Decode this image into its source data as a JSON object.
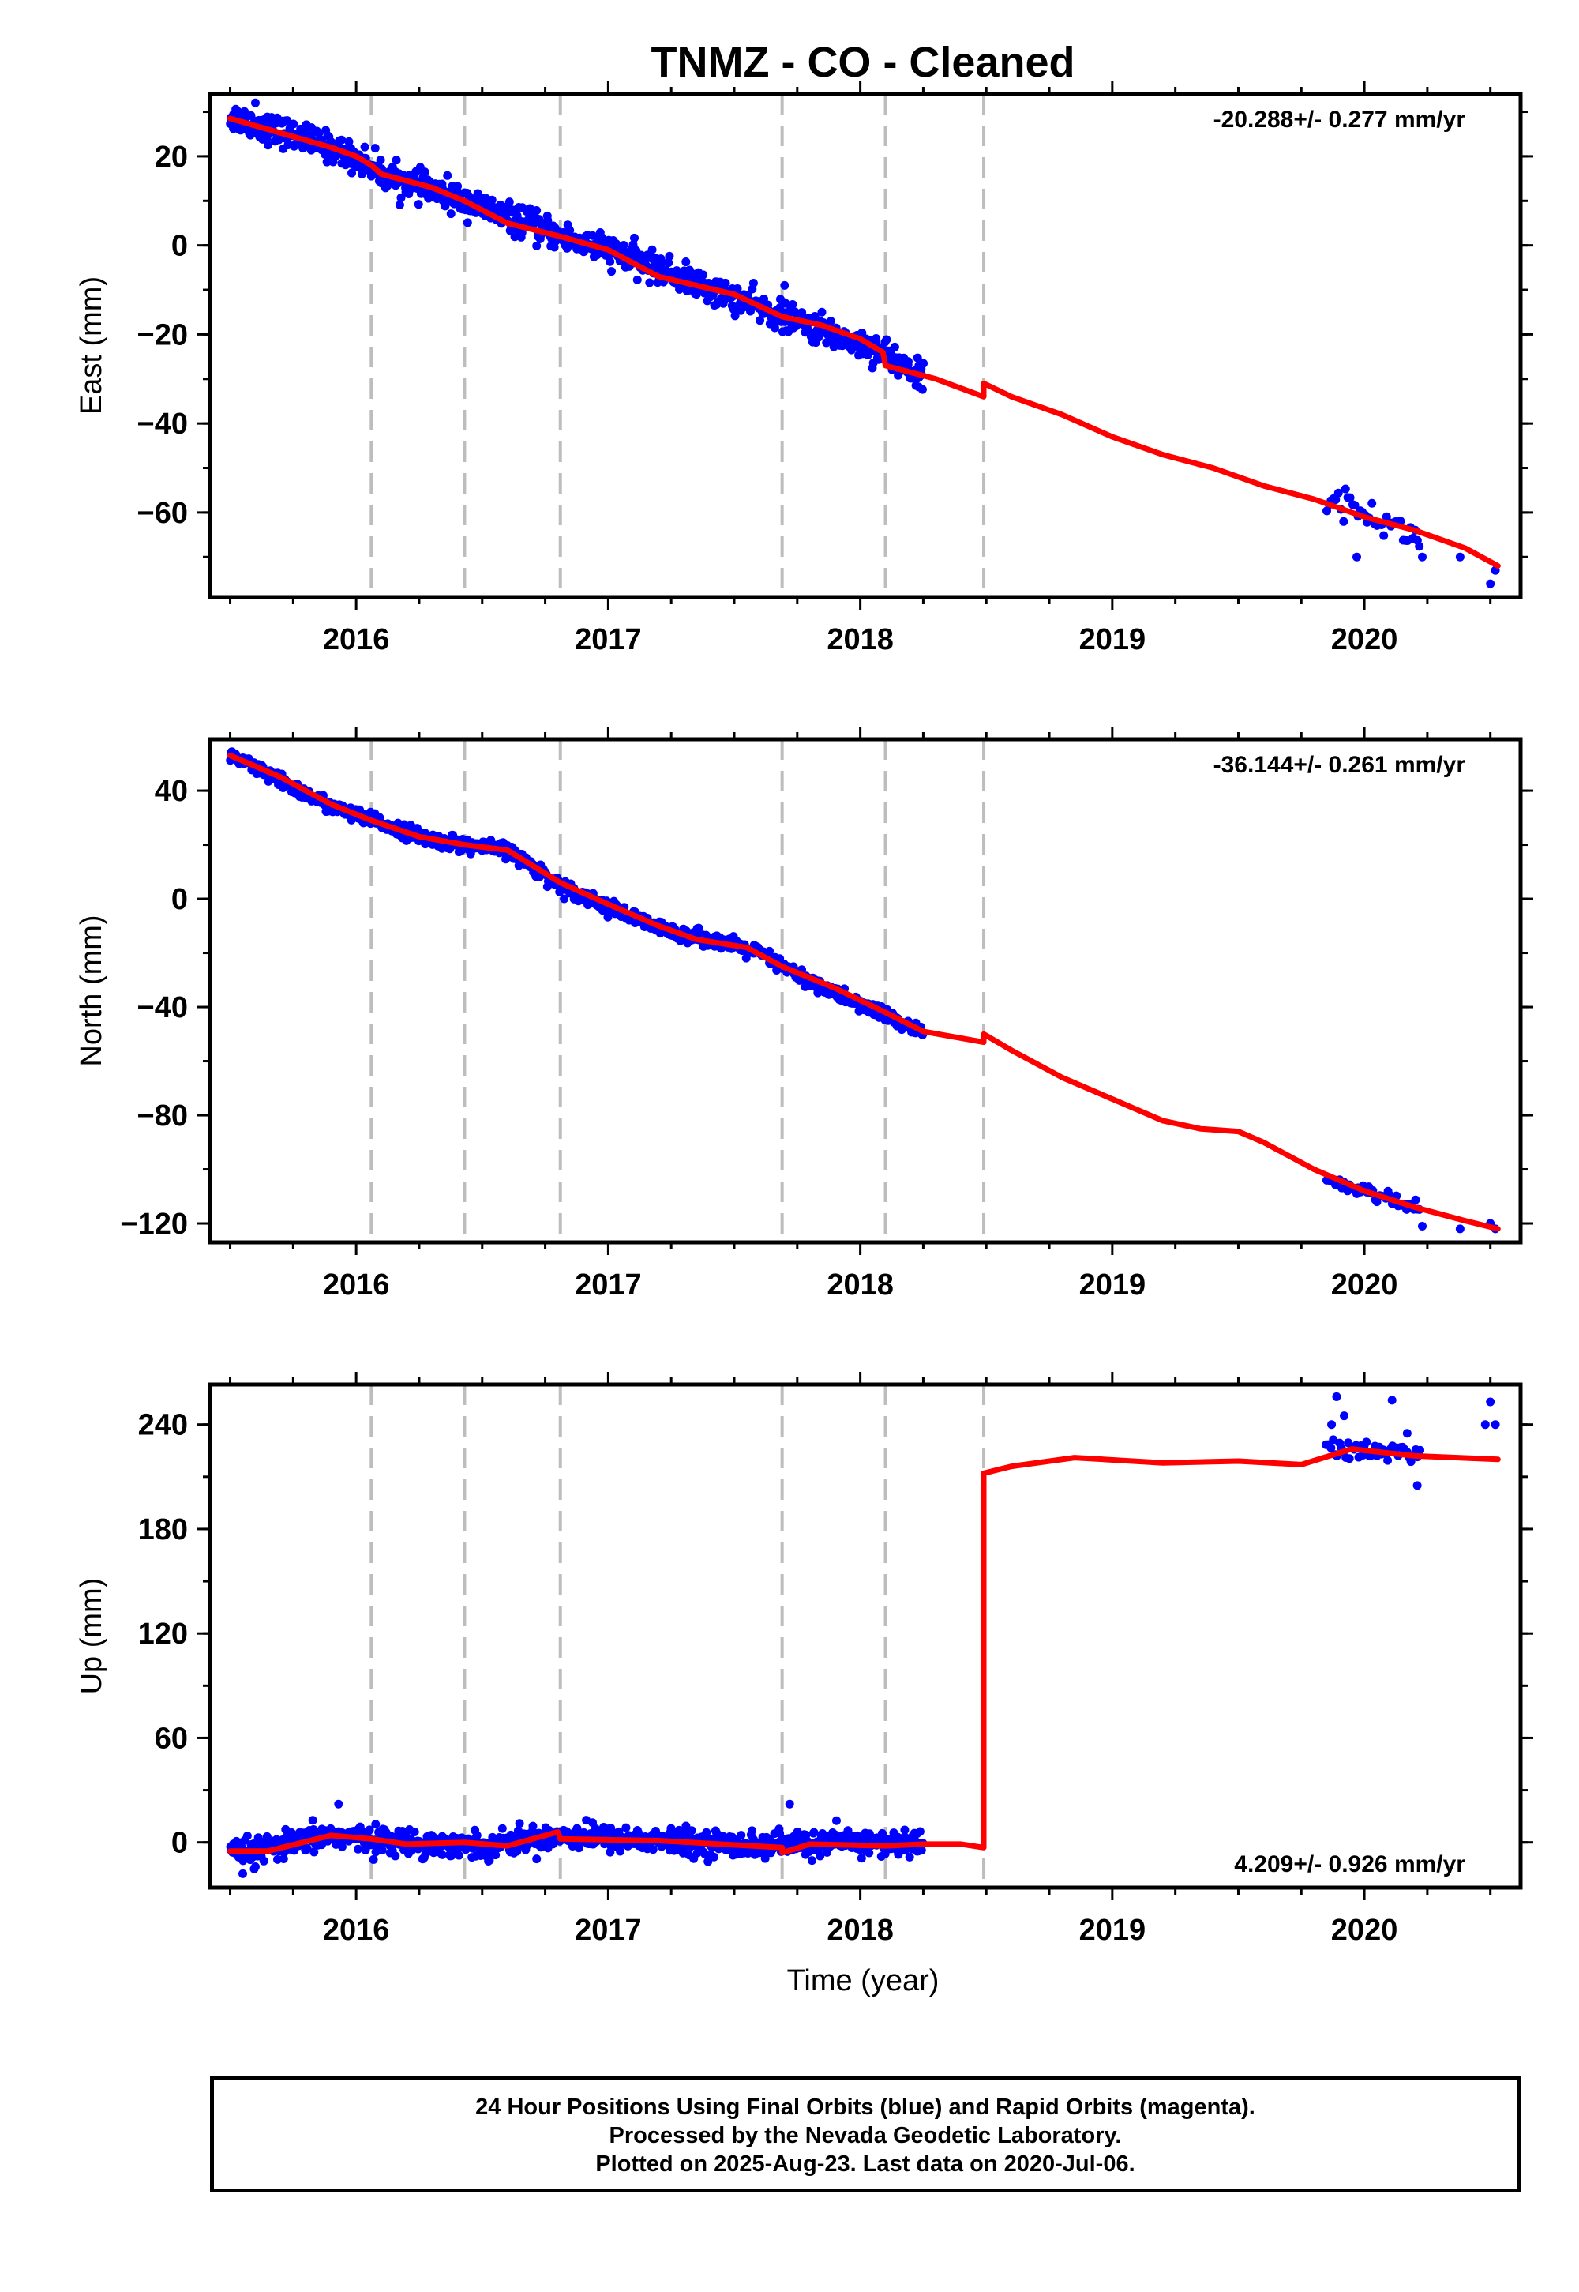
{
  "figure": {
    "title": "TNMZ  - CO - Cleaned",
    "xlabel": "Time (year)",
    "x_ticks": [
      "2016",
      "2017",
      "2018",
      "2019",
      "2020"
    ]
  },
  "chart_data": [
    {
      "type": "scatter",
      "ylabel": "East (mm)",
      "annotation": "-20.288+/- 0.277 mm/yr",
      "annotation_position": "top-right",
      "xlim": [
        2015.42,
        2020.62
      ],
      "ylim": [
        -79,
        34
      ],
      "y_ticks": [
        20,
        0,
        -20,
        -40,
        -60
      ],
      "y_tick_labels": [
        "20",
        "0",
        "−20",
        "−40",
        "−60"
      ],
      "event_lines": [
        2016.06,
        2016.43,
        2016.81,
        2017.69,
        2018.1,
        2018.49
      ],
      "series": [
        {
          "color": "#0000ff",
          "kind": "points",
          "noise": 1.6,
          "segments": [
            {
              "x": [
                2015.5,
                2018.25
              ],
              "count": 950,
              "anchors": [
                [
                  2015.5,
                  29
                ],
                [
                  2015.9,
                  22
                ],
                [
                  2016.06,
                  18
                ],
                [
                  2016.1,
                  16
                ],
                [
                  2016.43,
                  10
                ],
                [
                  2016.81,
                  2
                ],
                [
                  2017.0,
                  -1
                ],
                [
                  2017.69,
                  -16
                ],
                [
                  2018.1,
                  -24
                ],
                [
                  2018.25,
                  -30
                ]
              ]
            },
            {
              "x": [
                2019.85,
                2020.22
              ],
              "count": 40,
              "anchors": [
                [
                  2019.85,
                  -56
                ],
                [
                  2020.22,
                  -66
                ]
              ]
            }
          ],
          "extra_points": [
            [
              2019.97,
              -70
            ],
            [
              2020.5,
              -76
            ],
            [
              2020.52,
              -73
            ],
            [
              2020.38,
              -70
            ],
            [
              2020.23,
              -70
            ],
            [
              2017.7,
              -9
            ],
            [
              2015.6,
              32
            ],
            [
              2015.72,
              28
            ]
          ]
        },
        {
          "color": "#ff0000",
          "kind": "line",
          "points": [
            [
              2015.5,
              28.5
            ],
            [
              2015.9,
              22
            ],
            [
              2016.0,
              20
            ],
            [
              2016.06,
              18
            ],
            [
              2016.1,
              16
            ],
            [
              2016.3,
              13
            ],
            [
              2016.43,
              10
            ],
            [
              2016.6,
              5
            ],
            [
              2016.81,
              2
            ],
            [
              2017.0,
              -1
            ],
            [
              2017.2,
              -7
            ],
            [
              2017.5,
              -11
            ],
            [
              2017.69,
              -16
            ],
            [
              2017.85,
              -18
            ],
            [
              2018.0,
              -21
            ],
            [
              2018.09,
              -24
            ],
            [
              2018.1,
              -27
            ],
            [
              2018.3,
              -30
            ],
            [
              2018.49,
              -34
            ],
            [
              2018.49,
              -31
            ],
            [
              2018.6,
              -34
            ],
            [
              2018.8,
              -38
            ],
            [
              2019.0,
              -43
            ],
            [
              2019.2,
              -47
            ],
            [
              2019.4,
              -50
            ],
            [
              2019.6,
              -54
            ],
            [
              2019.8,
              -57
            ],
            [
              2020.0,
              -61
            ],
            [
              2020.2,
              -64
            ],
            [
              2020.4,
              -68
            ],
            [
              2020.53,
              -72
            ]
          ]
        }
      ]
    },
    {
      "type": "scatter",
      "ylabel": "North (mm)",
      "annotation": "-36.144+/- 0.261 mm/yr",
      "annotation_position": "top-right",
      "xlim": [
        2015.42,
        2020.62
      ],
      "ylim": [
        -127,
        59
      ],
      "y_ticks": [
        40,
        0,
        -40,
        -80,
        -120
      ],
      "y_tick_labels": [
        "40",
        "0",
        "−40",
        "−80",
        "−120"
      ],
      "event_lines": [
        2016.06,
        2016.43,
        2016.81,
        2017.69,
        2018.1,
        2018.49
      ],
      "series": [
        {
          "color": "#0000ff",
          "kind": "points",
          "noise": 1.3,
          "segments": [
            {
              "x": [
                2015.5,
                2018.25
              ],
              "count": 950,
              "anchors": [
                [
                  2015.5,
                  53
                ],
                [
                  2015.9,
                  34
                ],
                [
                  2016.06,
                  29
                ],
                [
                  2016.3,
                  22
                ],
                [
                  2016.43,
                  20
                ],
                [
                  2016.6,
                  18
                ],
                [
                  2016.81,
                  5
                ],
                [
                  2017.0,
                  -3
                ],
                [
                  2017.2,
                  -11
                ],
                [
                  2017.4,
                  -15
                ],
                [
                  2017.6,
                  -20
                ],
                [
                  2017.69,
                  -25
                ],
                [
                  2017.9,
                  -35
                ],
                [
                  2018.1,
                  -43
                ],
                [
                  2018.25,
                  -50
                ]
              ]
            },
            {
              "x": [
                2019.85,
                2020.22
              ],
              "count": 45,
              "anchors": [
                [
                  2019.85,
                  -103
                ],
                [
                  2020.22,
                  -115
                ]
              ]
            }
          ],
          "extra_points": [
            [
              2020.5,
              -120
            ],
            [
              2020.52,
              -122
            ],
            [
              2020.38,
              -122
            ],
            [
              2019.97,
              -109
            ],
            [
              2020.23,
              -121
            ],
            [
              2020.05,
              -112
            ]
          ]
        },
        {
          "color": "#ff0000",
          "kind": "line",
          "points": [
            [
              2015.5,
              53
            ],
            [
              2015.7,
              45
            ],
            [
              2015.9,
              35
            ],
            [
              2016.06,
              29
            ],
            [
              2016.25,
              23
            ],
            [
              2016.43,
              20
            ],
            [
              2016.6,
              18
            ],
            [
              2016.81,
              6
            ],
            [
              2017.0,
              -2
            ],
            [
              2017.2,
              -10
            ],
            [
              2017.35,
              -15
            ],
            [
              2017.55,
              -18
            ],
            [
              2017.69,
              -25
            ],
            [
              2017.9,
              -33
            ],
            [
              2018.1,
              -42
            ],
            [
              2018.25,
              -49
            ],
            [
              2018.49,
              -53
            ],
            [
              2018.49,
              -50
            ],
            [
              2018.6,
              -56
            ],
            [
              2018.8,
              -66
            ],
            [
              2019.0,
              -74
            ],
            [
              2019.2,
              -82
            ],
            [
              2019.35,
              -85
            ],
            [
              2019.5,
              -86
            ],
            [
              2019.6,
              -90
            ],
            [
              2019.8,
              -100
            ],
            [
              2020.0,
              -108
            ],
            [
              2020.2,
              -114
            ],
            [
              2020.4,
              -119
            ],
            [
              2020.53,
              -122
            ]
          ]
        }
      ]
    },
    {
      "type": "scatter",
      "ylabel": "Up (mm)",
      "annotation": "4.209+/- 0.926 mm/yr",
      "annotation_position": "bottom-right",
      "xlim": [
        2015.42,
        2020.62
      ],
      "ylim": [
        -26,
        263
      ],
      "y_ticks": [
        240,
        180,
        120,
        60,
        0
      ],
      "y_tick_labels": [
        "240",
        "180",
        "120",
        "60",
        "0"
      ],
      "event_lines": [
        2016.06,
        2016.43,
        2016.81,
        2017.69,
        2018.1,
        2018.49
      ],
      "series": [
        {
          "color": "#0000ff",
          "kind": "points",
          "noise": 3.5,
          "segments": [
            {
              "x": [
                2015.5,
                2018.25
              ],
              "count": 950,
              "anchors": [
                [
                  2015.5,
                  -6
                ],
                [
                  2015.65,
                  -4
                ],
                [
                  2015.9,
                  4
                ],
                [
                  2016.2,
                  0
                ],
                [
                  2016.5,
                  -2
                ],
                [
                  2016.8,
                  4
                ],
                [
                  2017.2,
                  1
                ],
                [
                  2017.6,
                  -2
                ],
                [
                  2017.9,
                  0
                ],
                [
                  2018.25,
                  -1
                ]
              ]
            },
            {
              "x": [
                2019.85,
                2020.22
              ],
              "count": 45,
              "anchors": [
                [
                  2019.85,
                  228
                ],
                [
                  2020.22,
                  222
                ]
              ]
            }
          ],
          "extra_points": [
            [
              2015.55,
              -18
            ],
            [
              2015.6,
              -14
            ],
            [
              2015.93,
              22
            ],
            [
              2017.72,
              22
            ],
            [
              2019.89,
              256
            ],
            [
              2020.11,
              254
            ],
            [
              2020.5,
              253
            ],
            [
              2020.48,
              240
            ],
            [
              2020.52,
              240
            ],
            [
              2020.21,
              205
            ],
            [
              2019.87,
              240
            ],
            [
              2020.17,
              235
            ],
            [
              2019.92,
              245
            ]
          ]
        },
        {
          "color": "#ff0000",
          "kind": "line",
          "points": [
            [
              2015.5,
              -5
            ],
            [
              2015.65,
              -5
            ],
            [
              2015.9,
              4
            ],
            [
              2016.06,
              2
            ],
            [
              2016.2,
              -1
            ],
            [
              2016.43,
              0
            ],
            [
              2016.6,
              -2
            ],
            [
              2016.8,
              6
            ],
            [
              2016.81,
              2
            ],
            [
              2017.2,
              1
            ],
            [
              2017.69,
              -3
            ],
            [
              2017.69,
              -6
            ],
            [
              2017.8,
              -1
            ],
            [
              2018.1,
              -2
            ],
            [
              2018.25,
              -1
            ],
            [
              2018.4,
              -1
            ],
            [
              2018.49,
              -3
            ],
            [
              2018.49,
              212
            ],
            [
              2018.6,
              216
            ],
            [
              2018.85,
              221
            ],
            [
              2019.2,
              218
            ],
            [
              2019.5,
              219
            ],
            [
              2019.75,
              217
            ],
            [
              2019.95,
              226
            ],
            [
              2020.2,
              222
            ],
            [
              2020.53,
              220
            ]
          ]
        }
      ]
    }
  ],
  "footer": {
    "line1": "24 Hour Positions Using Final Orbits (blue) and Rapid Orbits (magenta).",
    "line2": "Processed by the Nevada Geodetic Laboratory.",
    "line3": "Plotted on 2025-Aug-23. Last data on 2020-Jul-06."
  }
}
